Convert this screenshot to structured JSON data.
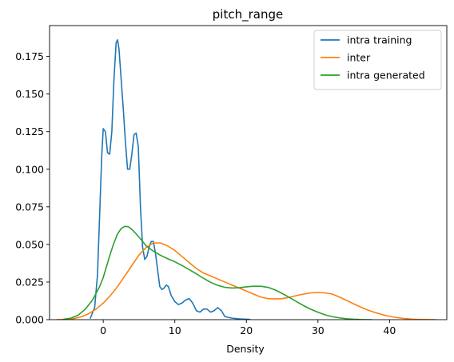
{
  "chart_data": {
    "type": "line",
    "title": "pitch_range",
    "xlabel": "Density",
    "ylabel": "",
    "xlim": [
      -7.5,
      48
    ],
    "ylim": [
      0,
      0.1955
    ],
    "xticks": [
      0,
      10,
      20,
      30,
      40
    ],
    "yticks": [
      0.0,
      0.025,
      0.05,
      0.075,
      0.1,
      0.125,
      0.15,
      0.175
    ],
    "ytick_labels": [
      "0.000",
      "0.025",
      "0.050",
      "0.075",
      "0.100",
      "0.125",
      "0.150",
      "0.175"
    ],
    "legend": "top-right",
    "grid": false,
    "series": [
      {
        "name": "intra training",
        "color": "#1f77b4",
        "x": [
          -1.8,
          -1.2,
          -0.8,
          -0.5,
          -0.2,
          0.0,
          0.3,
          0.6,
          0.9,
          1.2,
          1.5,
          1.8,
          2.0,
          2.2,
          2.5,
          2.8,
          3.1,
          3.4,
          3.7,
          4.0,
          4.3,
          4.6,
          4.9,
          5.2,
          5.5,
          5.8,
          6.1,
          6.4,
          6.7,
          7.0,
          7.3,
          7.6,
          7.9,
          8.2,
          8.5,
          8.8,
          9.1,
          9.5,
          10.0,
          10.5,
          11.0,
          11.5,
          12.0,
          12.5,
          13.0,
          13.5,
          14.0,
          14.5,
          15.0,
          15.5,
          16.0,
          16.5,
          17.0,
          18.0,
          19.0,
          20.5
        ],
        "values": [
          0.001,
          0.008,
          0.03,
          0.07,
          0.11,
          0.127,
          0.125,
          0.111,
          0.11,
          0.125,
          0.16,
          0.184,
          0.186,
          0.18,
          0.16,
          0.14,
          0.118,
          0.1,
          0.1,
          0.11,
          0.123,
          0.124,
          0.115,
          0.075,
          0.048,
          0.04,
          0.042,
          0.048,
          0.052,
          0.052,
          0.044,
          0.033,
          0.022,
          0.02,
          0.021,
          0.023,
          0.022,
          0.016,
          0.012,
          0.01,
          0.011,
          0.013,
          0.014,
          0.011,
          0.006,
          0.005,
          0.007,
          0.007,
          0.005,
          0.006,
          0.008,
          0.006,
          0.002,
          0.001,
          0.0005,
          0.0002
        ]
      },
      {
        "name": "inter",
        "color": "#ff7f0e",
        "x": [
          -6.5,
          -5.0,
          -4.0,
          -3.0,
          -2.0,
          -1.0,
          0.0,
          1.0,
          2.0,
          3.0,
          4.0,
          5.0,
          6.0,
          7.0,
          8.0,
          9.0,
          10.0,
          11.0,
          12.0,
          13.0,
          14.0,
          15.0,
          16.0,
          17.0,
          18.0,
          19.0,
          20.0,
          21.0,
          22.0,
          23.0,
          24.0,
          25.0,
          26.0,
          27.0,
          28.0,
          29.0,
          30.0,
          31.0,
          32.0,
          33.0,
          34.0,
          35.0,
          36.0,
          37.0,
          38.0,
          39.0,
          40.0,
          41.0,
          42.0,
          43.0,
          44.0,
          45.0,
          46.5
        ],
        "values": [
          0.0,
          0.0003,
          0.0008,
          0.002,
          0.004,
          0.007,
          0.011,
          0.016,
          0.022,
          0.029,
          0.036,
          0.043,
          0.048,
          0.051,
          0.051,
          0.049,
          0.046,
          0.042,
          0.038,
          0.034,
          0.031,
          0.029,
          0.027,
          0.025,
          0.023,
          0.021,
          0.019,
          0.017,
          0.015,
          0.014,
          0.0138,
          0.014,
          0.0148,
          0.016,
          0.017,
          0.0178,
          0.018,
          0.0178,
          0.017,
          0.015,
          0.0128,
          0.0105,
          0.0083,
          0.0063,
          0.0047,
          0.0033,
          0.0022,
          0.0014,
          0.0008,
          0.0004,
          0.0002,
          0.0001,
          0.0
        ]
      },
      {
        "name": "intra generated",
        "color": "#2ca02c",
        "x": [
          -5.5,
          -4.5,
          -3.5,
          -2.5,
          -1.5,
          -0.5,
          0.0,
          0.5,
          1.0,
          1.5,
          2.0,
          2.5,
          3.0,
          3.5,
          4.0,
          4.5,
          5.0,
          5.5,
          6.0,
          7.0,
          8.0,
          9.0,
          10.0,
          11.0,
          12.0,
          13.0,
          14.0,
          15.0,
          16.0,
          17.0,
          18.0,
          19.0,
          20.0,
          21.0,
          22.0,
          23.0,
          24.0,
          25.0,
          26.0,
          27.0,
          28.0,
          29.0,
          30.0,
          31.0,
          32.0,
          33.0,
          34.0,
          35.0,
          36.0,
          37.5
        ],
        "values": [
          0.0003,
          0.001,
          0.003,
          0.007,
          0.013,
          0.022,
          0.028,
          0.036,
          0.044,
          0.051,
          0.057,
          0.0605,
          0.062,
          0.0618,
          0.06,
          0.0575,
          0.0548,
          0.052,
          0.049,
          0.0455,
          0.0428,
          0.0405,
          0.0385,
          0.036,
          0.0333,
          0.0305,
          0.0275,
          0.0248,
          0.0228,
          0.0215,
          0.021,
          0.0212,
          0.0218,
          0.0222,
          0.0222,
          0.0215,
          0.0198,
          0.0174,
          0.0148,
          0.012,
          0.0093,
          0.0069,
          0.0049,
          0.0032,
          0.002,
          0.0012,
          0.0006,
          0.0003,
          0.0001,
          0.0
        ]
      }
    ]
  }
}
